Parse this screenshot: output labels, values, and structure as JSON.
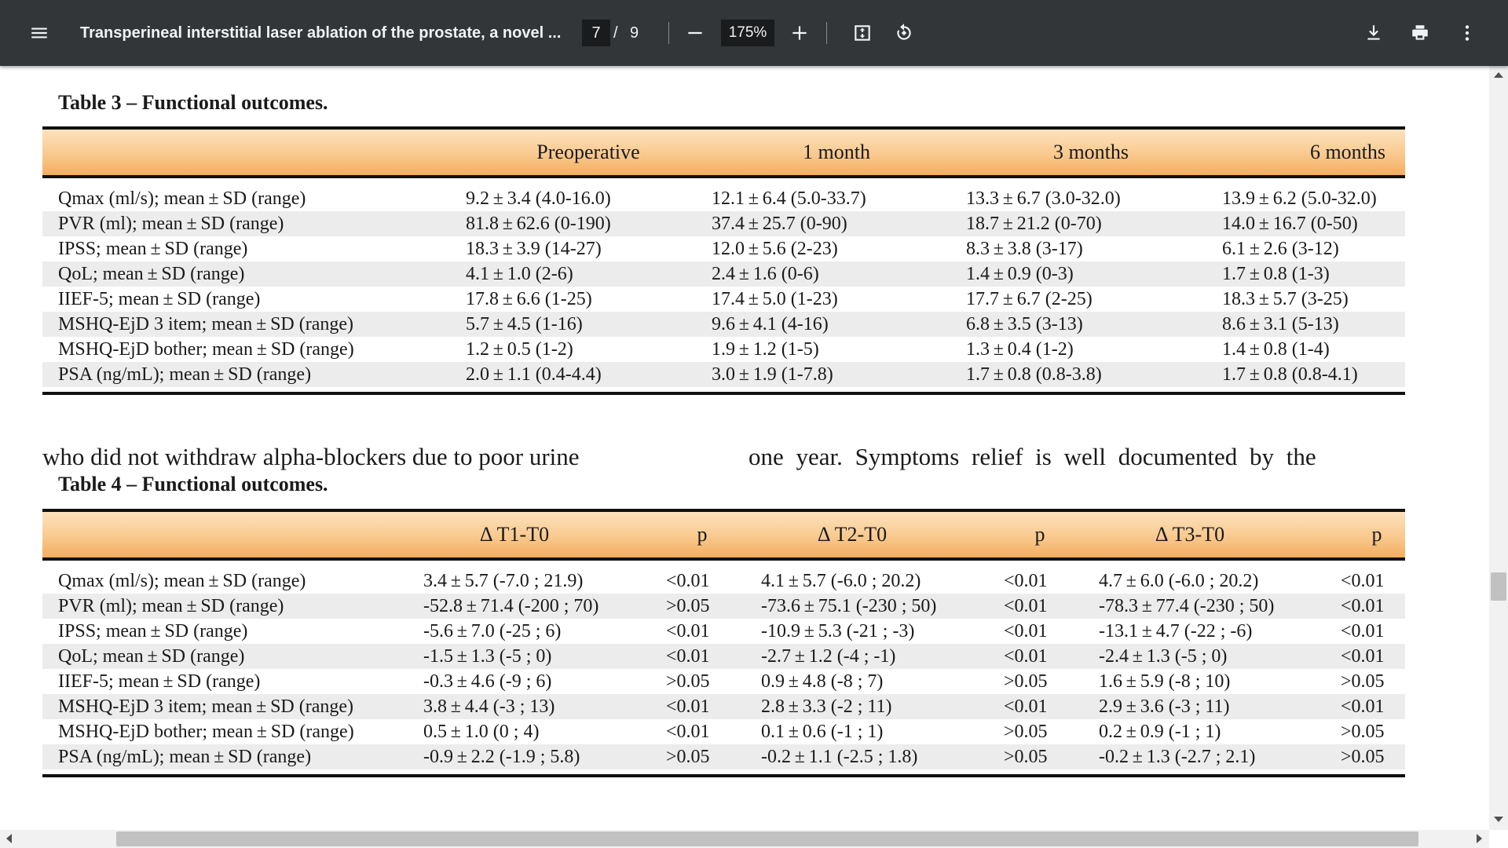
{
  "toolbar": {
    "title": "Transperineal interstitial laser ablation of the prostate, a novel ...",
    "page_current": "7",
    "page_separator": "/",
    "page_total": "9",
    "zoom": "175%",
    "icons": [
      "menu-icon",
      "zoom-out-icon",
      "zoom-in-icon",
      "fit-page-icon",
      "rotate-icon",
      "download-icon",
      "print-icon",
      "more-icon"
    ]
  },
  "table3": {
    "caption": "Table 3 – Functional outcomes.",
    "headers": [
      "",
      "Preoperative",
      "1 month",
      "3 months",
      "6 months"
    ],
    "rows": [
      [
        "Qmax (ml/s); mean ± SD (range)",
        "9.2 ± 3.4 (4.0-16.0)",
        "12.1 ± 6.4 (5.0-33.7)",
        "13.3 ± 6.7 (3.0-32.0)",
        "13.9 ± 6.2 (5.0-32.0)"
      ],
      [
        "PVR (ml); mean ± SD (range)",
        "81.8 ± 62.6 (0-190)",
        "37.4 ± 25.7 (0-90)",
        "18.7 ± 21.2 (0-70)",
        "14.0 ± 16.7 (0-50)"
      ],
      [
        "IPSS; mean ± SD (range)",
        "18.3 ± 3.9 (14-27)",
        "12.0 ± 5.6 (2-23)",
        "8.3 ± 3.8 (3-17)",
        "6.1 ± 2.6 (3-12)"
      ],
      [
        "QoL; mean ± SD (range)",
        "4.1 ± 1.0 (2-6)",
        "2.4 ± 1.6 (0-6)",
        "1.4 ± 0.9 (0-3)",
        "1.7 ± 0.8 (1-3)"
      ],
      [
        "IIEF-5; mean ± SD (range)",
        "17.8 ± 6.6 (1-25)",
        "17.4 ± 5.0 (1-23)",
        "17.7 ± 6.7 (2-25)",
        "18.3 ± 5.7 (3-25)"
      ],
      [
        "MSHQ-EjD 3 item; mean ± SD (range)",
        "5.7 ± 4.5 (1-16)",
        "9.6 ± 4.1 (4-16)",
        "6.8 ± 3.5 (3-13)",
        "8.6 ± 3.1 (5-13)"
      ],
      [
        "MSHQ-EjD bother; mean ± SD (range)",
        "1.2 ± 0.5 (1-2)",
        "1.9 ± 1.2 (1-5)",
        "1.3 ± 0.4 (1-2)",
        "1.4 ± 0.8 (1-4)"
      ],
      [
        "PSA (ng/mL); mean ± SD (range)",
        "2.0 ± 1.1 (0.4-4.4)",
        "3.0 ± 1.9 (1-7.8)",
        "1.7 ± 0.8 (0.8-3.8)",
        "1.7 ± 0.8 (0.8-4.1)"
      ]
    ]
  },
  "body_text": {
    "left": "who did not withdraw alpha-blockers due to poor urine",
    "right": "one year. Symptoms relief is well documented by the"
  },
  "table4": {
    "caption": "Table 4 – Functional outcomes.",
    "headers": [
      "",
      "Δ T1-T0",
      "p",
      "Δ T2-T0",
      "p",
      "Δ T3-T0",
      "p"
    ],
    "rows": [
      [
        "Qmax (ml/s); mean ± SD (range)",
        "3.4 ± 5.7 (-7.0 ; 21.9)",
        "<0.01",
        "4.1 ± 5.7 (-6.0 ; 20.2)",
        "<0.01",
        "4.7 ± 6.0 (-6.0 ; 20.2)",
        "<0.01"
      ],
      [
        "PVR (ml); mean ± SD (range)",
        "-52.8 ± 71.4 (-200 ; 70)",
        ">0.05",
        "-73.6 ± 75.1 (-230 ; 50)",
        "<0.01",
        "-78.3 ± 77.4 (-230 ; 50)",
        "<0.01"
      ],
      [
        "IPSS; mean ± SD (range)",
        "-5.6 ± 7.0 (-25 ; 6)",
        "<0.01",
        "-10.9 ± 5.3 (-21 ; -3)",
        "<0.01",
        "-13.1 ± 4.7 (-22 ; -6)",
        "<0.01"
      ],
      [
        "QoL; mean ± SD (range)",
        "-1.5 ± 1.3 (-5 ; 0)",
        "<0.01",
        "-2.7 ± 1.2 (-4 ; -1)",
        "<0.01",
        "-2.4 ± 1.3 (-5 ; 0)",
        "<0.01"
      ],
      [
        "IIEF-5; mean ± SD (range)",
        "-0.3 ± 4.6 (-9 ; 6)",
        ">0.05",
        "0.9 ± 4.8 (-8 ; 7)",
        ">0.05",
        "1.6 ± 5.9 (-8 ; 10)",
        ">0.05"
      ],
      [
        "MSHQ-EjD 3 item; mean ± SD (range)",
        "3.8 ± 4.4 (-3 ; 13)",
        "<0.01",
        "2.8 ± 3.3 (-2 ; 11)",
        "<0.01",
        "2.9 ± 3.6 (-3 ; 11)",
        "<0.01"
      ],
      [
        "MSHQ-EjD bother; mean ± SD (range)",
        "0.5 ± 1.0 (0 ; 4)",
        "<0.01",
        "0.1 ± 0.6 (-1 ; 1)",
        ">0.05",
        "0.2 ± 0.9 (-1 ; 1)",
        ">0.05"
      ],
      [
        "PSA (ng/mL); mean ± SD (range)",
        "-0.9 ± 2.2 (-1.9 ; 5.8)",
        ">0.05",
        "-0.2 ± 1.1 (-2.5 ; 1.8)",
        ">0.05",
        "-0.2 ± 1.3 (-2.7 ; 2.1)",
        ">0.05"
      ]
    ]
  },
  "colors": {
    "toolbar_bg": "#323639",
    "header_light": "#fde2bd",
    "header_dark": "#f4ad5f",
    "row_shade": "#ececec"
  }
}
